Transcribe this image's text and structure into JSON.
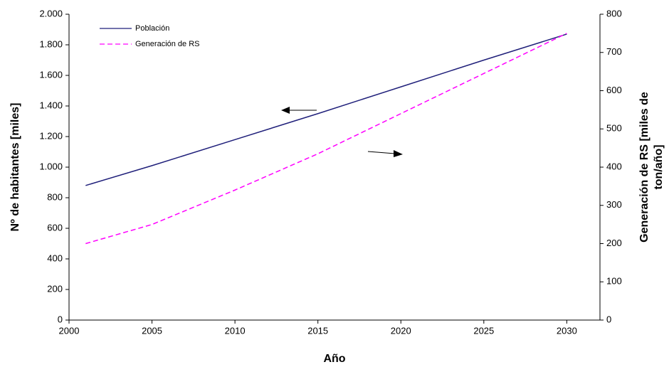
{
  "chart_data": {
    "type": "line",
    "xlabel": "Año",
    "ylabel": "Nº de habitantes [miles]",
    "y2label": [
      "Generación de RS [miles de",
      "ton/año]"
    ],
    "x": [
      2001,
      2005,
      2010,
      2015,
      2020,
      2025,
      2030
    ],
    "series": [
      {
        "name": "Población",
        "color": "#1f1f7a",
        "dash": false,
        "values": [
          880,
          1010,
          1180,
          1350,
          1525,
          1700,
          1870
        ]
      },
      {
        "name": "Generación de RS",
        "color": "#ff00ff",
        "dash": true,
        "axis": "y2",
        "values": [
          200,
          250,
          340,
          435,
          540,
          645,
          750
        ]
      }
    ],
    "xlim": [
      2000,
      2032
    ],
    "xticks": [
      2000,
      2005,
      2010,
      2015,
      2020,
      2025,
      2030
    ],
    "ylim": [
      0,
      2000
    ],
    "yticks": [
      0,
      200,
      400,
      600,
      800,
      {
        "value": 1000,
        "label": "1.000"
      },
      {
        "value": 1200,
        "label": "1.200"
      },
      {
        "value": 1400,
        "label": "1.400"
      },
      {
        "value": 1600,
        "label": "1.600"
      },
      {
        "value": 1800,
        "label": "1.800"
      },
      {
        "value": 2000,
        "label": "2.000"
      }
    ],
    "y2lim": [
      0,
      800
    ],
    "y2ticks": [
      0,
      100,
      200,
      300,
      400,
      500,
      600,
      700,
      800
    ],
    "grid": false
  }
}
